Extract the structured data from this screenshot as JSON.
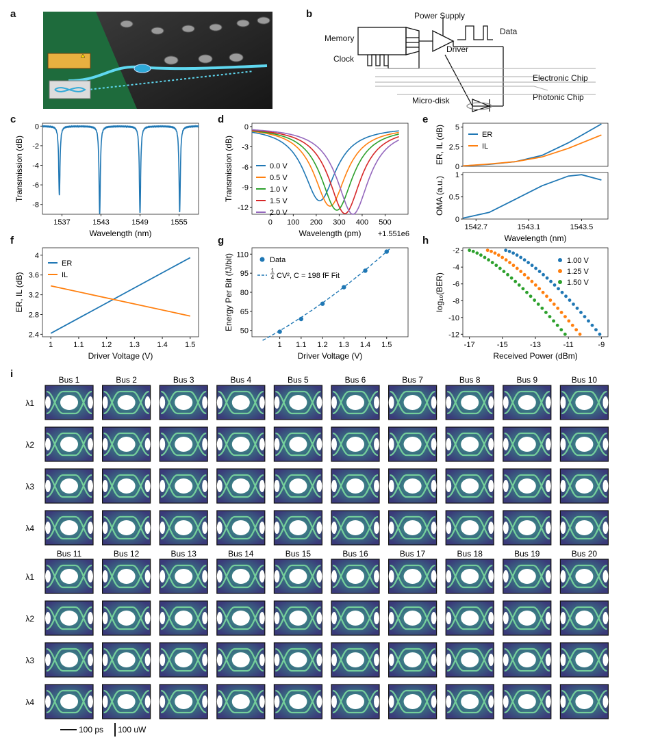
{
  "panel_letters": [
    "a",
    "b",
    "c",
    "d",
    "e",
    "f",
    "g",
    "h",
    "i"
  ],
  "panel_b": {
    "labels": {
      "power_supply": "Power Supply",
      "memory": "Memory",
      "clock": "Clock",
      "data": "Data",
      "driver": "Driver",
      "electronic_chip": "Electronic Chip",
      "photonic_chip": "Photonic Chip",
      "micro_disk": "Micro-disk"
    }
  },
  "chart_data": [
    {
      "id": "c",
      "type": "line",
      "xlabel": "Wavelength (nm)",
      "ylabel": "Transmission (dB)",
      "xlim": [
        1534,
        1558
      ],
      "ylim": [
        -9,
        0.3
      ],
      "xticks": [
        1537,
        1543,
        1549,
        1555
      ],
      "yticks": [
        0,
        -2,
        -4,
        -6,
        -8
      ],
      "resonances": [
        {
          "center": 1536.6,
          "depth": -7.1
        },
        {
          "center": 1542.8,
          "depth": -8.9
        },
        {
          "center": 1549.0,
          "depth": -8.9
        },
        {
          "center": 1555.1,
          "depth": -8.8
        }
      ],
      "color": "#1f77b4"
    },
    {
      "id": "d",
      "type": "line",
      "xlabel": "Wavelength (pm)",
      "ylabel": "Transmission (dB)",
      "offset_label": "+1.551e6",
      "xlim": [
        -80,
        600
      ],
      "ylim": [
        -13,
        0.5
      ],
      "xticks": [
        0,
        100,
        200,
        300,
        400,
        500
      ],
      "yticks": [
        0,
        -3,
        -6,
        -9,
        -12
      ],
      "series": [
        {
          "name": "0.0 V",
          "center": 215,
          "depth": -11,
          "color": "#1f77b4"
        },
        {
          "name": "0.5 V",
          "center": 260,
          "depth": -11.8,
          "color": "#ff7f0e"
        },
        {
          "name": "1.0 V",
          "center": 290,
          "depth": -12.4,
          "color": "#2ca02c"
        },
        {
          "name": "1.5 V",
          "center": 325,
          "depth": -12.9,
          "color": "#d62728"
        },
        {
          "name": "2.0 V",
          "center": 360,
          "depth": -13,
          "color": "#9467bd"
        }
      ]
    },
    {
      "id": "e_top",
      "type": "line",
      "ylabel": "ER, IL (dB)",
      "xlim": [
        1542.6,
        1543.7
      ],
      "ylim": [
        0,
        5.5
      ],
      "yticks": [
        0,
        2.5,
        5
      ],
      "series": [
        {
          "name": "ER",
          "x": [
            1542.6,
            1542.8,
            1543.0,
            1543.2,
            1543.4,
            1543.65
          ],
          "y": [
            0.05,
            0.25,
            0.6,
            1.4,
            3.0,
            5.4
          ],
          "color": "#1f77b4"
        },
        {
          "name": "IL",
          "x": [
            1542.6,
            1542.8,
            1543.0,
            1543.2,
            1543.4,
            1543.65
          ],
          "y": [
            0.05,
            0.3,
            0.6,
            1.2,
            2.3,
            4.0
          ],
          "color": "#ff7f0e"
        }
      ]
    },
    {
      "id": "e_bottom",
      "type": "line",
      "xlabel": "Wavelength (nm)",
      "ylabel": "OMA (a.u.)",
      "xlim": [
        1542.6,
        1543.7
      ],
      "ylim": [
        0,
        1.05
      ],
      "xticks": [
        1542.7,
        1543.1,
        1543.5
      ],
      "yticks": [
        0,
        0.5,
        1
      ],
      "series": [
        {
          "name": "OMA",
          "x": [
            1542.6,
            1542.8,
            1543.0,
            1543.2,
            1543.4,
            1543.5,
            1543.65
          ],
          "y": [
            0.02,
            0.15,
            0.45,
            0.75,
            0.97,
            1.0,
            0.88
          ],
          "color": "#1f77b4"
        }
      ]
    },
    {
      "id": "f",
      "type": "line",
      "xlabel": "Driver Voltage (V)",
      "ylabel": "ER, IL (dB)",
      "xlim": [
        0.97,
        1.53
      ],
      "ylim": [
        2.35,
        4.15
      ],
      "xticks": [
        1,
        1.1,
        1.2,
        1.3,
        1.4,
        1.5
      ],
      "yticks": [
        2.4,
        2.8,
        3.2,
        3.6,
        4
      ],
      "series": [
        {
          "name": "ER",
          "x": [
            1.0,
            1.5
          ],
          "y": [
            2.42,
            3.95
          ],
          "color": "#1f77b4"
        },
        {
          "name": "IL",
          "x": [
            1.0,
            1.5
          ],
          "y": [
            3.38,
            2.77
          ],
          "color": "#ff7f0e"
        }
      ]
    },
    {
      "id": "g",
      "type": "scatter",
      "xlabel": "Driver Voltage (V)",
      "ylabel": "Energy Per Bit (fJ/bit)",
      "xlim": [
        0.87,
        1.6
      ],
      "ylim": [
        45,
        115
      ],
      "xticks": [
        1,
        1.1,
        1.2,
        1.3,
        1.4,
        1.5
      ],
      "yticks": [
        50,
        65,
        80,
        95,
        110
      ],
      "series": [
        {
          "name": "Data",
          "x": [
            1.0,
            1.1,
            1.2,
            1.3,
            1.4,
            1.5
          ],
          "y": [
            49,
            59,
            71,
            84,
            97,
            112
          ],
          "color": "#1f77b4"
        }
      ],
      "fit_label": "CV², C = 198 fF Fit",
      "fit_frac_num": "1",
      "fit_frac_den": "4",
      "fit_C_fF": 198
    },
    {
      "id": "h",
      "type": "scatter",
      "xlabel": "Received Power (dBm)",
      "ylabel": "log₁₀(BER)",
      "xlim": [
        -17.4,
        -8.6
      ],
      "ylim": [
        -12.3,
        -1.7
      ],
      "xticks": [
        -17,
        -15,
        -13,
        -11,
        -9
      ],
      "yticks": [
        -2,
        -4,
        -6,
        -8,
        -10,
        -12
      ],
      "series": [
        {
          "name": "1.00 V",
          "x_start": -14.8,
          "x_end": -9.1,
          "color": "#1f77b4"
        },
        {
          "name": "1.25 V",
          "x_start": -15.9,
          "x_end": -10.3,
          "color": "#ff7f0e"
        },
        {
          "name": "1.50 V",
          "x_start": -17.0,
          "x_end": -11.2,
          "color": "#2ca02c"
        }
      ]
    }
  ],
  "panel_i": {
    "buses_row1": [
      "Bus 1",
      "Bus 2",
      "Bus 3",
      "Bus 4",
      "Bus 5",
      "Bus 6",
      "Bus 7",
      "Bus 8",
      "Bus 9",
      "Bus 10"
    ],
    "buses_row2": [
      "Bus 11",
      "Bus 12",
      "Bus 13",
      "Bus 14",
      "Bus 15",
      "Bus 16",
      "Bus 17",
      "Bus 18",
      "Bus 19",
      "Bus 20"
    ],
    "wavelengths": [
      "λ1",
      "λ2",
      "λ3",
      "λ4"
    ],
    "scale_time": "100 ps",
    "scale_power": "100 uW"
  }
}
